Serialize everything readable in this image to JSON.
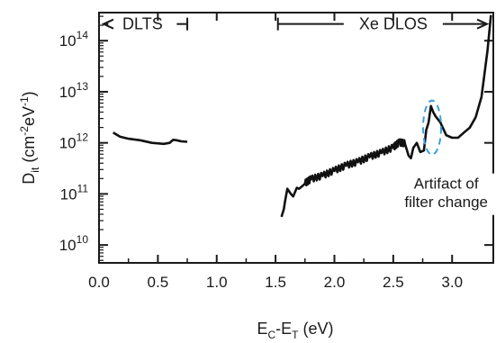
{
  "chart_data": {
    "type": "line",
    "title": "",
    "xlabel": {
      "main": "E",
      "sub1": "C",
      "mid": "-E",
      "sub2": "T",
      "tail": " (eV)"
    },
    "ylabel": {
      "main": "D",
      "sub": "it",
      "unit_open": " (cm",
      "sup1": "-2",
      "mid": "eV",
      "sup2": "-1",
      "unit_close": ")"
    },
    "xlim": [
      0.0,
      3.35
    ],
    "ylim_exponent": [
      9.65,
      14.55
    ],
    "yscale": "log",
    "xticks": [
      "0.0",
      "0.5",
      "1.0",
      "1.5",
      "2.0",
      "2.5",
      "3.0"
    ],
    "xtick_values": [
      0.0,
      0.5,
      1.0,
      1.5,
      2.0,
      2.5,
      3.0
    ],
    "yticks": [
      {
        "base": "10",
        "exp": "10",
        "value": 10
      },
      {
        "base": "10",
        "exp": "11",
        "value": 11
      },
      {
        "base": "10",
        "exp": "12",
        "value": 12
      },
      {
        "base": "10",
        "exp": "13",
        "value": 13
      },
      {
        "base": "10",
        "exp": "14",
        "value": 14
      }
    ],
    "grid": false,
    "color": "#111111",
    "regions": [
      {
        "label": "DLTS",
        "x_start": 0.0,
        "x_end": 0.75
      },
      {
        "label": "Xe DLOS",
        "x_start": 1.52,
        "x_end": 3.35
      }
    ],
    "annotation": {
      "lines": [
        "Artifact of",
        "filter change"
      ],
      "x": 2.83,
      "y_exponent": 12.3,
      "ellipse_color": "#3aa0e0"
    },
    "series": [
      {
        "x": [
          0.12,
          0.18,
          0.25,
          0.35,
          0.45,
          0.55,
          0.6,
          0.63,
          0.66,
          0.7,
          0.75
        ],
        "y_exponent": [
          12.2,
          12.12,
          12.08,
          12.05,
          12.0,
          11.98,
          12.0,
          12.06,
          12.05,
          12.03,
          12.02
        ]
      },
      {
        "x": [
          1.55,
          1.57,
          1.58,
          1.6,
          1.63,
          1.65,
          1.68,
          1.7,
          1.75,
          1.8,
          1.9,
          2.0,
          2.1,
          2.2,
          2.3,
          2.4,
          2.5,
          2.55,
          2.6,
          2.63,
          2.65,
          2.67,
          2.7,
          2.73,
          2.76,
          2.78,
          2.8,
          2.82,
          2.84,
          2.86,
          2.9,
          2.95,
          3.0,
          3.05,
          3.1,
          3.15,
          3.2,
          3.25,
          3.3,
          3.33
        ],
        "y_exponent": [
          10.55,
          10.7,
          10.85,
          11.1,
          11.0,
          10.95,
          11.12,
          11.1,
          11.2,
          11.28,
          11.35,
          11.45,
          11.55,
          11.62,
          11.72,
          11.8,
          11.9,
          12.0,
          11.98,
          11.75,
          11.7,
          11.9,
          12.0,
          11.82,
          11.85,
          12.25,
          12.4,
          12.72,
          12.6,
          12.52,
          12.4,
          12.15,
          12.1,
          12.1,
          12.2,
          12.3,
          12.5,
          12.9,
          13.8,
          14.5
        ]
      }
    ]
  }
}
